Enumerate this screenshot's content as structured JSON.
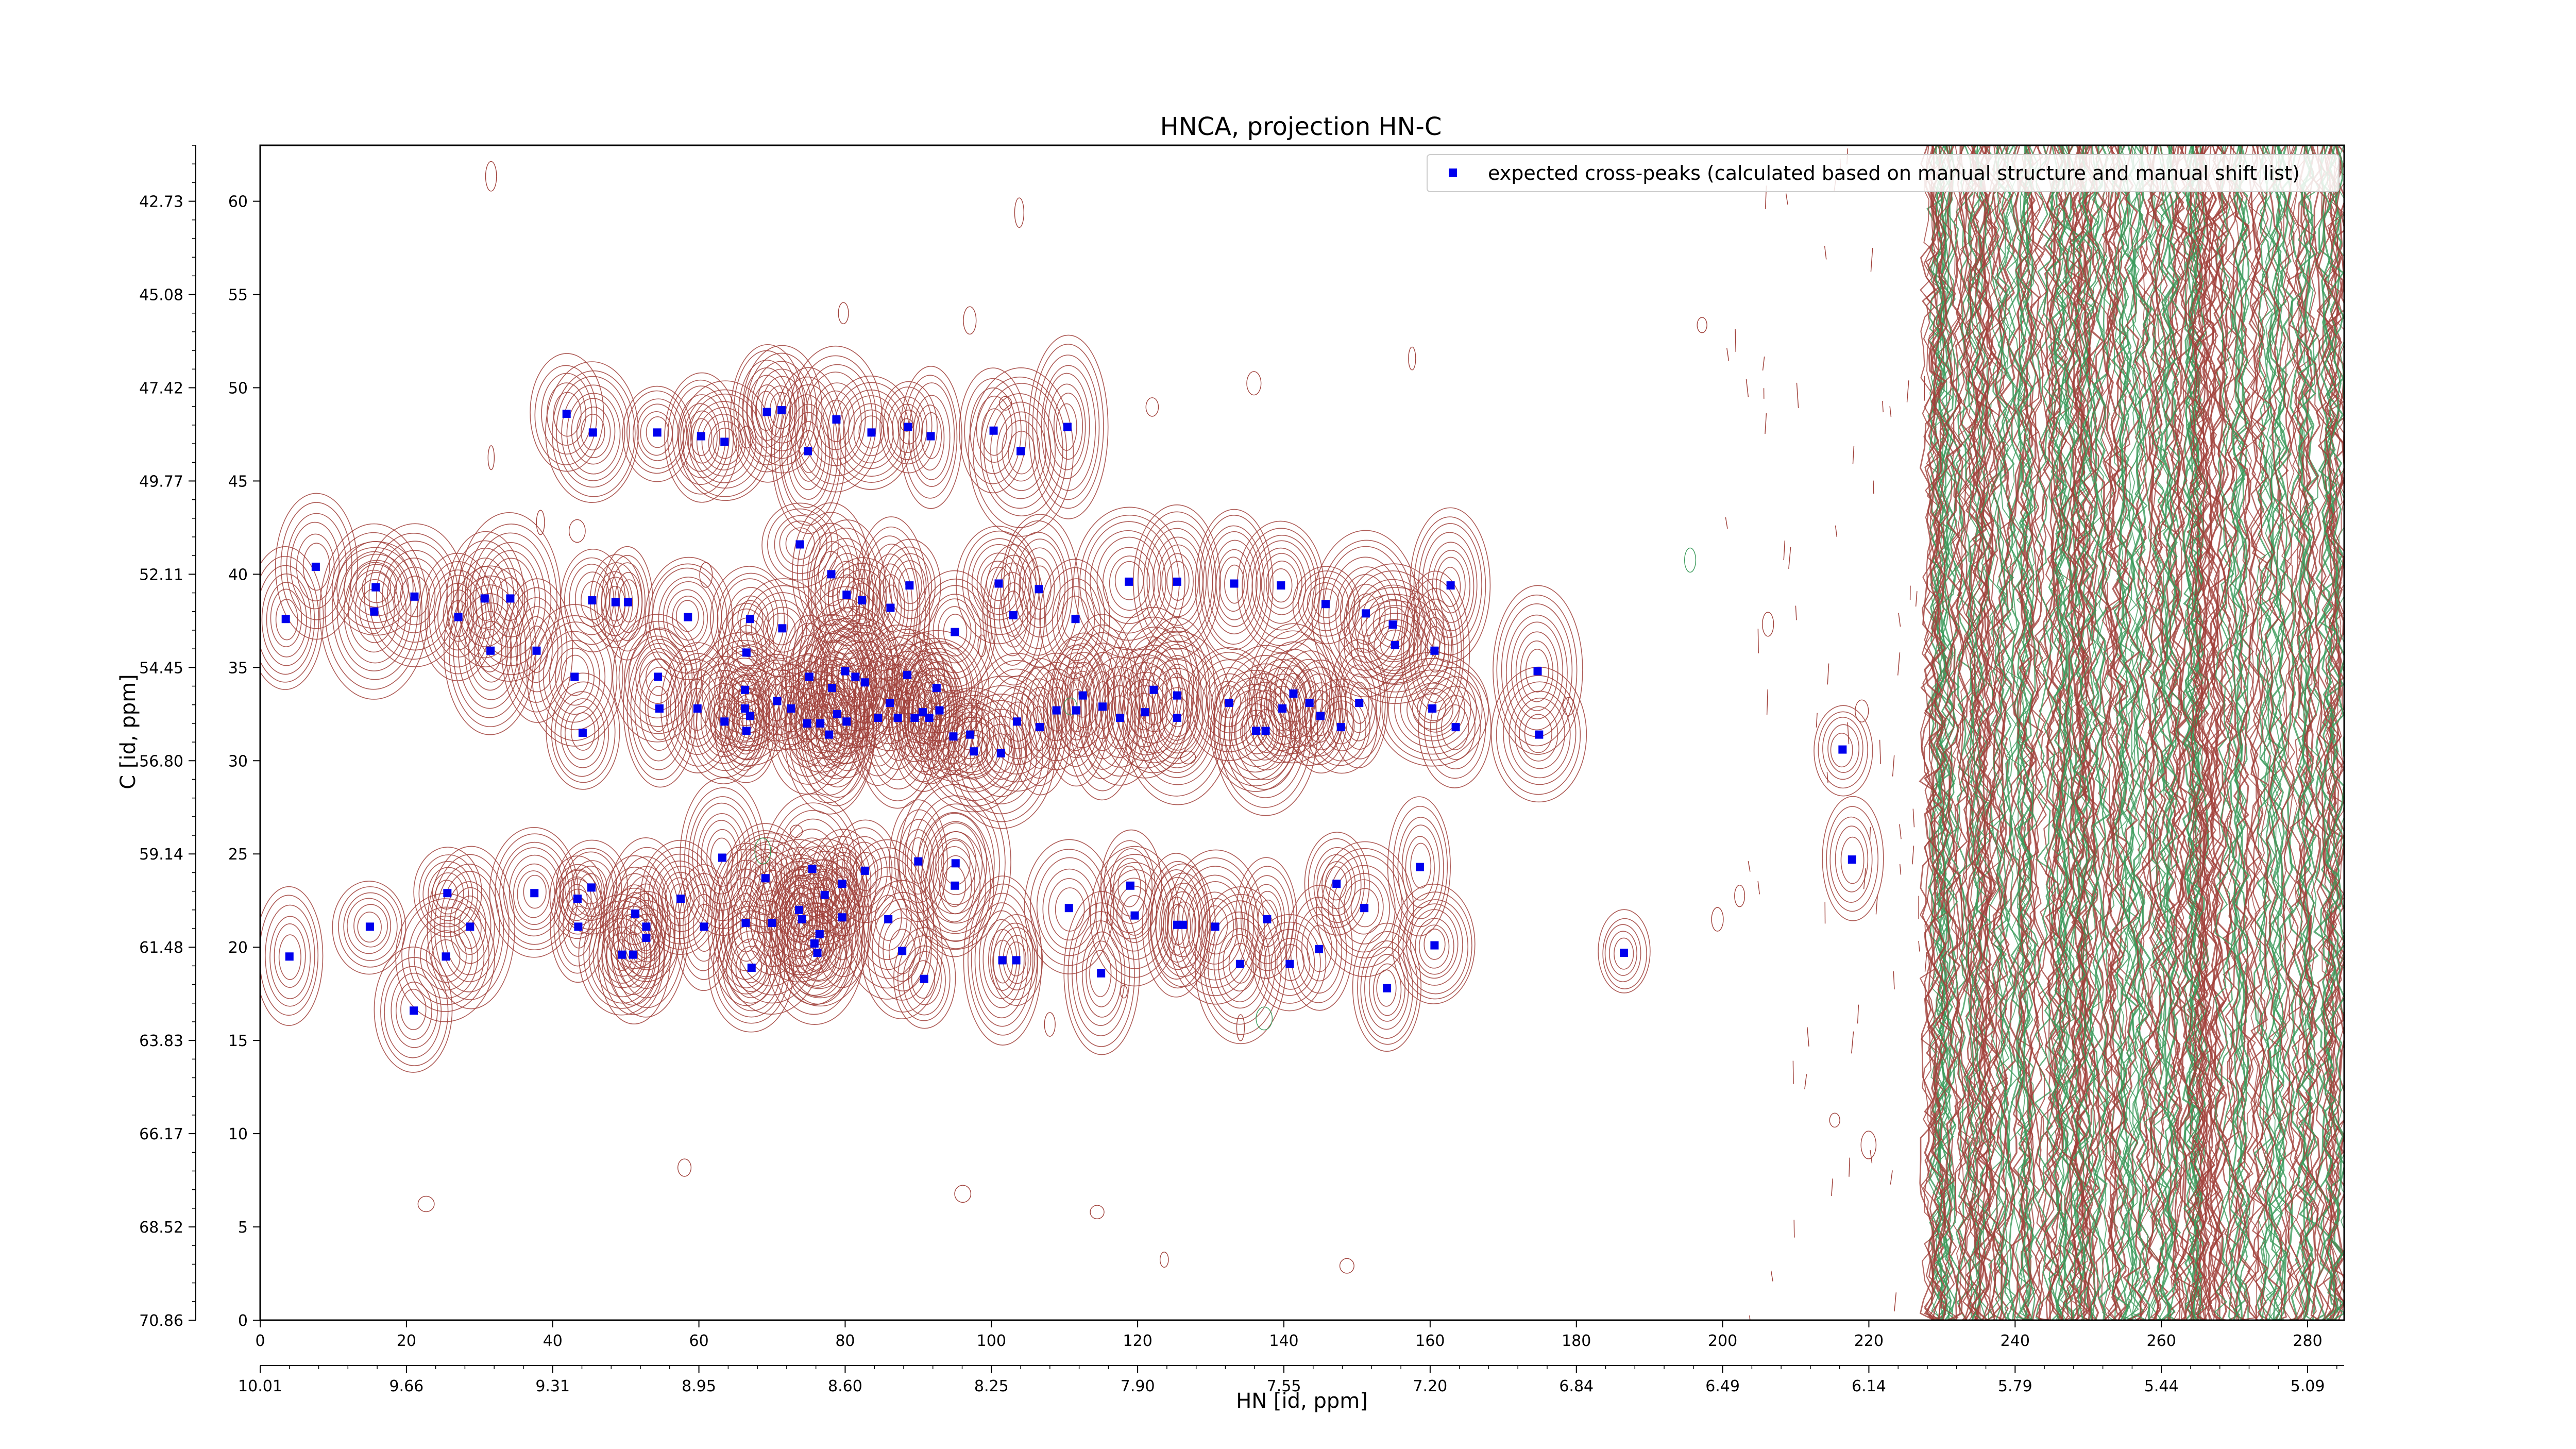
{
  "chart_data": {
    "type": "scatter",
    "title": "HNCA, projection HN-C",
    "xlabel": "HN [id, ppm]",
    "ylabel": "C [id, ppm]",
    "x_index_range": [
      0,
      285
    ],
    "y_index_range": [
      0,
      63
    ],
    "x_index_ticks": [
      "0",
      "20",
      "40",
      "60",
      "80",
      "100",
      "120",
      "140",
      "160",
      "180",
      "200",
      "220",
      "240",
      "260",
      "280"
    ],
    "x_ppm_ticks": [
      "10.01",
      "9.66",
      "9.31",
      "8.95",
      "8.60",
      "8.25",
      "7.90",
      "7.55",
      "7.20",
      "6.84",
      "6.49",
      "6.14",
      "5.79",
      "5.44",
      "5.09"
    ],
    "y_index_ticks": [
      "0",
      "5",
      "10",
      "15",
      "20",
      "25",
      "30",
      "35",
      "40",
      "45",
      "50",
      "55",
      "60"
    ],
    "y_ppm_ticks": [
      "70.86",
      "68.52",
      "66.17",
      "63.83",
      "61.48",
      "59.14",
      "56.80",
      "54.45",
      "52.11",
      "49.77",
      "47.42",
      "45.08",
      "42.73"
    ],
    "legend": {
      "label": "expected cross-peaks (calculated based on manual structure and manual shift list)",
      "position": "top-right"
    },
    "colors": {
      "marker": "#0000ee",
      "contour_positive": "#a0403a",
      "contour_negative": "#3a9a5a"
    },
    "grid": false,
    "series": [
      {
        "name": "expected cross-peaks (calculated based on manual structure and manual shift list)",
        "points": [
          [
            3.5,
            37.6
          ],
          [
            15.6,
            38
          ],
          [
            31.5,
            35.9
          ],
          [
            37.8,
            35.9
          ],
          [
            43,
            34.5
          ],
          [
            54.4,
            34.5
          ],
          [
            66.5,
            35.8
          ],
          [
            80,
            34.8
          ],
          [
            95,
            36.9
          ],
          [
            103,
            37.8
          ],
          [
            112.5,
            33.5
          ],
          [
            125.4,
            33.5
          ],
          [
            141.3,
            33.6
          ],
          [
            155.2,
            36.2
          ],
          [
            160.6,
            35.9
          ],
          [
            4,
            19.5
          ],
          [
            15,
            21.1
          ],
          [
            21,
            16.6
          ],
          [
            25.4,
            19.5
          ],
          [
            25.6,
            22.9
          ],
          [
            28.7,
            21.1
          ],
          [
            37.5,
            22.9
          ],
          [
            43.4,
            22.6
          ],
          [
            43.5,
            21.1
          ],
          [
            45.3,
            23.2
          ],
          [
            49.5,
            19.6
          ],
          [
            51,
            19.6
          ],
          [
            51.3,
            21.8
          ],
          [
            52.8,
            21.1
          ],
          [
            52.8,
            20.5
          ],
          [
            57.5,
            22.6
          ],
          [
            60.7,
            21.1
          ],
          [
            63.2,
            24.8
          ],
          [
            66.4,
            21.3
          ],
          [
            67.2,
            18.9
          ],
          [
            69.1,
            23.7
          ],
          [
            70,
            21.3
          ],
          [
            73.7,
            22
          ],
          [
            74.1,
            21.5
          ],
          [
            75.5,
            24.2
          ],
          [
            75.8,
            20.2
          ],
          [
            76.2,
            19.7
          ],
          [
            76.5,
            20.7
          ],
          [
            77.2,
            22.8
          ],
          [
            79.6,
            23.4
          ],
          [
            79.6,
            21.6
          ],
          [
            82.7,
            24.1
          ],
          [
            85.9,
            21.5
          ],
          [
            87.8,
            19.8
          ],
          [
            90,
            24.6
          ],
          [
            90.8,
            18.3
          ],
          [
            95,
            23.3
          ],
          [
            95.1,
            24.5
          ],
          [
            101.5,
            19.3
          ],
          [
            103.4,
            19.3
          ],
          [
            110.6,
            22.1
          ],
          [
            115,
            18.6
          ],
          [
            119,
            23.3
          ],
          [
            119.6,
            21.7
          ],
          [
            125.4,
            21.2
          ],
          [
            126.2,
            21.2
          ],
          [
            130.6,
            21.1
          ],
          [
            134,
            19.1
          ],
          [
            137.7,
            21.5
          ],
          [
            140.8,
            19.1
          ],
          [
            144.8,
            19.9
          ],
          [
            147.2,
            23.4
          ],
          [
            151,
            22.1
          ],
          [
            154.1,
            17.8
          ],
          [
            158.6,
            24.3
          ],
          [
            160.6,
            20.1
          ],
          [
            186.5,
            19.7
          ],
          [
            217.7,
            24.7
          ],
          [
            44.1,
            31.5
          ],
          [
            54.6,
            32.8
          ],
          [
            59.8,
            32.8
          ],
          [
            63.5,
            32.1
          ],
          [
            66.3,
            33.8
          ],
          [
            66.3,
            32.8
          ],
          [
            66.5,
            31.6
          ],
          [
            67,
            32.4
          ],
          [
            70.7,
            33.2
          ],
          [
            72.6,
            32.8
          ],
          [
            74.8,
            32
          ],
          [
            75.1,
            34.5
          ],
          [
            76.6,
            32
          ],
          [
            77.8,
            31.4
          ],
          [
            78.2,
            33.9
          ],
          [
            78.9,
            32.5
          ],
          [
            80.2,
            32.1
          ],
          [
            81.4,
            34.5
          ],
          [
            82.7,
            34.2
          ],
          [
            84.5,
            32.3
          ],
          [
            86.1,
            33.1
          ],
          [
            87.2,
            32.3
          ],
          [
            88.5,
            34.6
          ],
          [
            89.5,
            32.3
          ],
          [
            90.6,
            32.6
          ],
          [
            91.5,
            32.3
          ],
          [
            92.5,
            33.9
          ],
          [
            92.9,
            32.7
          ],
          [
            94.8,
            31.3
          ],
          [
            97.1,
            31.4
          ],
          [
            97.6,
            30.5
          ],
          [
            101.3,
            30.4
          ],
          [
            103.5,
            32.1
          ],
          [
            106.6,
            31.8
          ],
          [
            108.9,
            32.7
          ],
          [
            111.6,
            32.7
          ],
          [
            115.2,
            32.9
          ],
          [
            117.6,
            32.3
          ],
          [
            121,
            32.6
          ],
          [
            122.2,
            33.8
          ],
          [
            125.4,
            32.3
          ],
          [
            132.5,
            33.1
          ],
          [
            136.2,
            31.6
          ],
          [
            137.5,
            31.6
          ],
          [
            139.8,
            32.8
          ],
          [
            143.5,
            33.1
          ],
          [
            145,
            32.4
          ],
          [
            147.8,
            31.8
          ],
          [
            150.3,
            33.1
          ],
          [
            160.3,
            32.8
          ],
          [
            163.5,
            31.8
          ],
          [
            174.7,
            34.8
          ],
          [
            174.9,
            31.4
          ],
          [
            7.6,
            40.4
          ],
          [
            15.8,
            39.3
          ],
          [
            21.1,
            38.8
          ],
          [
            27.1,
            37.7
          ],
          [
            30.7,
            38.7
          ],
          [
            34.2,
            38.7
          ],
          [
            45.4,
            38.6
          ],
          [
            48.6,
            38.5
          ],
          [
            50.3,
            38.5
          ],
          [
            58.5,
            37.7
          ],
          [
            67,
            37.6
          ],
          [
            71.4,
            37.1
          ],
          [
            73.8,
            41.6
          ],
          [
            78.1,
            40
          ],
          [
            80.2,
            38.9
          ],
          [
            82.3,
            38.6
          ],
          [
            86.2,
            38.2
          ],
          [
            88.8,
            39.4
          ],
          [
            101,
            39.5
          ],
          [
            106.5,
            39.2
          ],
          [
            111.5,
            37.6
          ],
          [
            118.8,
            39.6
          ],
          [
            125.4,
            39.6
          ],
          [
            133.2,
            39.5
          ],
          [
            139.6,
            39.4
          ],
          [
            145.7,
            38.4
          ],
          [
            151.2,
            37.9
          ],
          [
            154.9,
            37.3
          ],
          [
            162.8,
            39.4
          ],
          [
            216.4,
            30.6
          ],
          [
            41.9,
            48.6
          ],
          [
            45.5,
            47.6
          ],
          [
            54.3,
            47.6
          ],
          [
            60.3,
            47.4
          ],
          [
            63.5,
            47.1
          ],
          [
            69.3,
            48.7
          ],
          [
            71.3,
            48.8
          ],
          [
            74.9,
            46.6
          ],
          [
            78.8,
            48.3
          ],
          [
            83.6,
            47.6
          ],
          [
            88.6,
            47.9
          ],
          [
            91.7,
            47.4
          ],
          [
            100.3,
            47.7
          ],
          [
            104,
            46.6
          ],
          [
            110.4,
            47.9
          ]
        ]
      }
    ]
  }
}
